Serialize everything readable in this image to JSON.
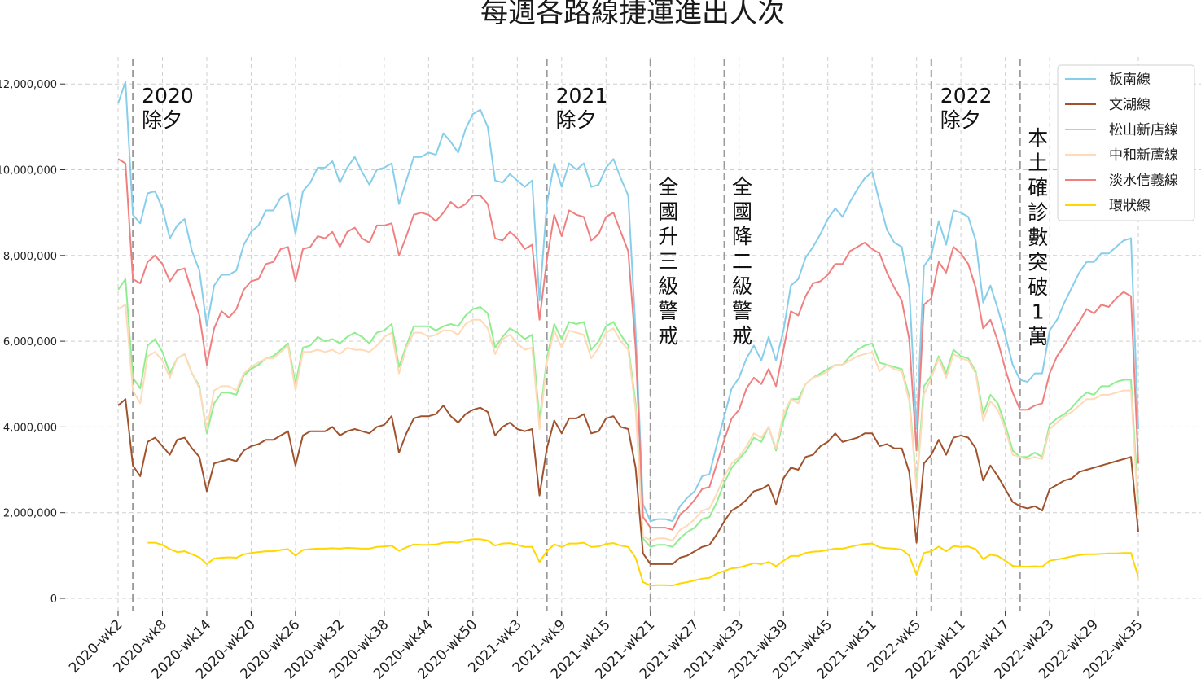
{
  "chart_data": {
    "type": "line",
    "title": "每週各路線捷運進出人次",
    "xlabel": "",
    "ylabel": "",
    "ylim": [
      0,
      12500000
    ],
    "yticks": [
      0,
      2000000,
      4000000,
      6000000,
      8000000,
      10000000,
      12000000
    ],
    "ytick_labels": [
      "0",
      "2,000,000",
      "4,000,000",
      "6,000,000",
      "8,000,000",
      "10,000,000",
      "12,000,000"
    ],
    "xtick_labels": [
      "2020-wk2",
      "2020-wk8",
      "2020-wk14",
      "2020-wk20",
      "2020-wk26",
      "2020-wk32",
      "2020-wk38",
      "2020-wk44",
      "2020-wk50",
      "2021-wk3",
      "2021-wk9",
      "2021-wk15",
      "2021-wk21",
      "2021-wk27",
      "2021-wk33",
      "2021-wk39",
      "2021-wk45",
      "2021-wk51",
      "2022-wk5",
      "2022-wk11",
      "2022-wk17",
      "2022-wk23",
      "2022-wk29",
      "2022-wk35"
    ],
    "grid": true,
    "legend_position": "top-right",
    "series": [
      {
        "name": "板南線",
        "color": "#87ceeb",
        "values": [
          11550000,
          12050000,
          8950000,
          8750000,
          9450000,
          9500000,
          9100000,
          8400000,
          8700000,
          8850000,
          8100000,
          7650000,
          6350000,
          7300000,
          7550000,
          7550000,
          7650000,
          8250000,
          8550000,
          8700000,
          9050000,
          9050000,
          9350000,
          9450000,
          8500000,
          9500000,
          9700000,
          10050000,
          10050000,
          10200000,
          9700000,
          10050000,
          10300000,
          9950000,
          9650000,
          10000000,
          10050000,
          10150000,
          9200000,
          9750000,
          10300000,
          10300000,
          10400000,
          10350000,
          10850000,
          10650000,
          10400000,
          10950000,
          11300000,
          11400000,
          11000000,
          9750000,
          9700000,
          9900000,
          9750000,
          9600000,
          9750000,
          6950000,
          9200000,
          10150000,
          9600000,
          10150000,
          10000000,
          10150000,
          9600000,
          9650000,
          10050000,
          10250000,
          9800000,
          9400000,
          6250000,
          2200000,
          1800000,
          1850000,
          1850000,
          1800000,
          2150000,
          2350000,
          2500000,
          2850000,
          2900000,
          3600000,
          4250000,
          4900000,
          5150000,
          5600000,
          5900000,
          5550000,
          6100000,
          5550000,
          6250000,
          7300000,
          7450000,
          7950000,
          8200000,
          8500000,
          8850000,
          9100000,
          8900000,
          9250000,
          9550000,
          9800000,
          9950000,
          9250000,
          8600000,
          8300000,
          8200000,
          7250000,
          3950000,
          7750000,
          8000000,
          8800000,
          8250000,
          9050000,
          9000000,
          8900000,
          8350000,
          6900000,
          7300000,
          6750000,
          6150000,
          5450000,
          5100000,
          5050000,
          5250000,
          5250000,
          6250000,
          6500000,
          6900000,
          7250000,
          7600000,
          7850000,
          7850000,
          8050000,
          8050000,
          8200000,
          8350000,
          8400000,
          3950000
        ]
      },
      {
        "name": "文湖線",
        "color": "#a0522d",
        "values": [
          4500000,
          4650000,
          3100000,
          2850000,
          3650000,
          3750000,
          3550000,
          3350000,
          3700000,
          3750000,
          3500000,
          3300000,
          2500000,
          3150000,
          3200000,
          3250000,
          3200000,
          3450000,
          3550000,
          3600000,
          3700000,
          3700000,
          3800000,
          3900000,
          3100000,
          3800000,
          3900000,
          3900000,
          3900000,
          4000000,
          3800000,
          3900000,
          3950000,
          3900000,
          3850000,
          4000000,
          4050000,
          4250000,
          3400000,
          3850000,
          4200000,
          4250000,
          4250000,
          4300000,
          4500000,
          4250000,
          4100000,
          4300000,
          4400000,
          4450000,
          4350000,
          3800000,
          4000000,
          4100000,
          3950000,
          3900000,
          3950000,
          2400000,
          3500000,
          4150000,
          3850000,
          4200000,
          4200000,
          4300000,
          3850000,
          3900000,
          4200000,
          4250000,
          4000000,
          3950000,
          3050000,
          1050000,
          800000,
          800000,
          800000,
          800000,
          950000,
          1000000,
          1100000,
          1200000,
          1250000,
          1500000,
          1800000,
          2050000,
          2150000,
          2300000,
          2500000,
          2550000,
          2650000,
          2200000,
          2800000,
          3050000,
          3000000,
          3300000,
          3350000,
          3550000,
          3650000,
          3850000,
          3650000,
          3700000,
          3750000,
          3850000,
          3850000,
          3550000,
          3600000,
          3500000,
          3500000,
          2950000,
          1300000,
          3150000,
          3350000,
          3700000,
          3350000,
          3750000,
          3800000,
          3750000,
          3500000,
          2750000,
          3100000,
          2850000,
          2550000,
          2250000,
          2150000,
          2100000,
          2150000,
          2050000,
          2550000,
          2650000,
          2750000,
          2800000,
          2950000,
          3000000,
          3050000,
          3100000,
          3150000,
          3200000,
          3250000,
          3300000,
          1550000
        ]
      },
      {
        "name": "松山新店線",
        "color": "#90ee90",
        "values": [
          7200000,
          7450000,
          5150000,
          4900000,
          5900000,
          6050000,
          5750000,
          5250000,
          5600000,
          5700000,
          5250000,
          4950000,
          3850000,
          4550000,
          4800000,
          4800000,
          4750000,
          5200000,
          5350000,
          5450000,
          5600000,
          5650000,
          5800000,
          5950000,
          5000000,
          5850000,
          5900000,
          6100000,
          6000000,
          6050000,
          5950000,
          6100000,
          6200000,
          6100000,
          5950000,
          6200000,
          6250000,
          6400000,
          5400000,
          5900000,
          6350000,
          6350000,
          6350000,
          6250000,
          6350000,
          6400000,
          6350000,
          6600000,
          6750000,
          6800000,
          6650000,
          5850000,
          6100000,
          6300000,
          6200000,
          6050000,
          6150000,
          4150000,
          5600000,
          6400000,
          6050000,
          6450000,
          6400000,
          6450000,
          5800000,
          6000000,
          6350000,
          6450000,
          6150000,
          5900000,
          4550000,
          1400000,
          1200000,
          1250000,
          1250000,
          1200000,
          1400000,
          1550000,
          1650000,
          1850000,
          1900000,
          2250000,
          2700000,
          3050000,
          3250000,
          3450000,
          3750000,
          3650000,
          4000000,
          3450000,
          4150000,
          4650000,
          4650000,
          5000000,
          5150000,
          5250000,
          5350000,
          5450000,
          5450000,
          5650000,
          5800000,
          5900000,
          5950000,
          5500000,
          5450000,
          5400000,
          5350000,
          4700000,
          2650000,
          4950000,
          5200000,
          5650000,
          5250000,
          5800000,
          5650000,
          5600000,
          5300000,
          4300000,
          4750000,
          4550000,
          4050000,
          3450000,
          3300000,
          3300000,
          3400000,
          3300000,
          4050000,
          4200000,
          4300000,
          4450000,
          4650000,
          4800000,
          4750000,
          4950000,
          4950000,
          5050000,
          5100000,
          5100000,
          2200000
        ]
      },
      {
        "name": "中和新蘆線",
        "color": "#ffdab9",
        "values": [
          6750000,
          6850000,
          4850000,
          4550000,
          5650000,
          5750000,
          5550000,
          5150000,
          5600000,
          5700000,
          5250000,
          4900000,
          3950000,
          4850000,
          4950000,
          4950000,
          4850000,
          5250000,
          5400000,
          5500000,
          5600000,
          5600000,
          5750000,
          5900000,
          4850000,
          5750000,
          5750000,
          5800000,
          5750000,
          5800000,
          5700000,
          5850000,
          5800000,
          5800000,
          5750000,
          5900000,
          6100000,
          6200000,
          5250000,
          5850000,
          6200000,
          6200000,
          6100000,
          6150000,
          6250000,
          6250000,
          6150000,
          6400000,
          6500000,
          6500000,
          6300000,
          5700000,
          6050000,
          6150000,
          5950000,
          5800000,
          5850000,
          3950000,
          5500000,
          6250000,
          5850000,
          6250000,
          6200000,
          6150000,
          5600000,
          5850000,
          6200000,
          6300000,
          6000000,
          5800000,
          4400000,
          1450000,
          1350000,
          1400000,
          1400000,
          1350000,
          1600000,
          1700000,
          1850000,
          2050000,
          2100000,
          2450000,
          2850000,
          3150000,
          3300000,
          3550000,
          3850000,
          3750000,
          4000000,
          3500000,
          4300000,
          4650000,
          4550000,
          5000000,
          5150000,
          5200000,
          5300000,
          5450000,
          5450000,
          5550000,
          5650000,
          5700000,
          5750000,
          5300000,
          5450000,
          5350000,
          5300000,
          4600000,
          2550000,
          4750000,
          5150000,
          5600000,
          5150000,
          5700000,
          5600000,
          5550000,
          5250000,
          4150000,
          4600000,
          4400000,
          3950000,
          3350000,
          3300000,
          3250000,
          3300000,
          3250000,
          3950000,
          4100000,
          4250000,
          4350000,
          4500000,
          4650000,
          4650000,
          4750000,
          4750000,
          4800000,
          4850000,
          4850000,
          1950000
        ]
      },
      {
        "name": "淡水信義線",
        "color": "#f08080",
        "values": [
          10250000,
          10150000,
          7450000,
          7350000,
          7850000,
          8000000,
          7800000,
          7400000,
          7650000,
          7700000,
          7150000,
          6600000,
          5450000,
          6300000,
          6700000,
          6550000,
          6750000,
          7200000,
          7400000,
          7450000,
          7800000,
          7850000,
          8150000,
          8200000,
          7400000,
          8150000,
          8200000,
          8450000,
          8400000,
          8550000,
          8200000,
          8550000,
          8650000,
          8400000,
          8300000,
          8700000,
          8700000,
          8750000,
          8000000,
          8450000,
          8950000,
          9000000,
          8950000,
          8800000,
          9000000,
          9250000,
          9100000,
          9200000,
          9400000,
          9400000,
          9200000,
          8400000,
          8350000,
          8550000,
          8400000,
          8150000,
          8250000,
          6500000,
          7900000,
          8950000,
          8450000,
          9050000,
          8950000,
          8900000,
          8350000,
          8500000,
          8900000,
          9000000,
          8550000,
          8100000,
          5850000,
          1900000,
          1650000,
          1650000,
          1650000,
          1600000,
          1950000,
          2100000,
          2300000,
          2550000,
          2600000,
          3150000,
          3700000,
          4200000,
          4400000,
          4900000,
          5150000,
          5000000,
          5350000,
          4950000,
          5800000,
          6700000,
          6600000,
          7050000,
          7350000,
          7400000,
          7550000,
          7800000,
          7800000,
          8100000,
          8200000,
          8300000,
          8150000,
          8050000,
          7600000,
          7250000,
          6950000,
          6050000,
          3450000,
          6850000,
          7000000,
          7850000,
          7600000,
          8200000,
          8050000,
          7800000,
          7250000,
          6300000,
          6500000,
          6000000,
          5350000,
          4800000,
          4400000,
          4400000,
          4500000,
          4550000,
          5250000,
          5650000,
          5900000,
          6200000,
          6450000,
          6750000,
          6650000,
          6850000,
          6800000,
          7000000,
          7150000,
          7050000,
          3150000
        ]
      },
      {
        "name": "環狀線",
        "color": "#ffd700",
        "values": [
          null,
          null,
          null,
          null,
          1300000,
          1300000,
          1250000,
          1150000,
          1080000,
          1100000,
          1030000,
          960000,
          800000,
          930000,
          950000,
          960000,
          950000,
          1030000,
          1060000,
          1080000,
          1100000,
          1100000,
          1130000,
          1150000,
          1000000,
          1130000,
          1150000,
          1160000,
          1160000,
          1170000,
          1160000,
          1180000,
          1170000,
          1160000,
          1160000,
          1200000,
          1210000,
          1230000,
          1110000,
          1190000,
          1260000,
          1250000,
          1250000,
          1260000,
          1300000,
          1310000,
          1300000,
          1350000,
          1380000,
          1380000,
          1350000,
          1230000,
          1280000,
          1290000,
          1250000,
          1200000,
          1200000,
          850000,
          1100000,
          1260000,
          1200000,
          1280000,
          1280000,
          1300000,
          1200000,
          1210000,
          1270000,
          1290000,
          1230000,
          1200000,
          950000,
          380000,
          300000,
          310000,
          310000,
          300000,
          350000,
          380000,
          420000,
          460000,
          480000,
          580000,
          640000,
          700000,
          720000,
          770000,
          820000,
          800000,
          850000,
          750000,
          880000,
          990000,
          990000,
          1060000,
          1090000,
          1100000,
          1130000,
          1160000,
          1160000,
          1200000,
          1240000,
          1270000,
          1280000,
          1190000,
          1170000,
          1160000,
          1140000,
          1000000,
          550000,
          1060000,
          1100000,
          1210000,
          1100000,
          1220000,
          1200000,
          1210000,
          1150000,
          920000,
          1020000,
          990000,
          880000,
          760000,
          740000,
          740000,
          750000,
          740000,
          880000,
          910000,
          940000,
          980000,
          1010000,
          1030000,
          1030000,
          1040000,
          1050000,
          1050000,
          1060000,
          1060000,
          500000
        ]
      }
    ],
    "annotations": [
      {
        "lines": [
          "2020",
          "除夕"
        ],
        "orientation": "horizontal",
        "week_index": 2
      },
      {
        "lines": [
          "2021",
          "除夕"
        ],
        "orientation": "horizontal",
        "week_index": 58
      },
      {
        "lines": [
          "全",
          "國",
          "升",
          "三",
          "級",
          "警",
          "戒"
        ],
        "orientation": "vertical",
        "week_index": 72
      },
      {
        "lines": [
          "全",
          "國",
          "降",
          "二",
          "級",
          "警",
          "戒"
        ],
        "orientation": "vertical",
        "week_index": 82
      },
      {
        "lines": [
          "2022",
          "除夕"
        ],
        "orientation": "horizontal",
        "week_index": 110
      },
      {
        "lines": [
          "本",
          "土",
          "確",
          "診",
          "數",
          "突",
          "破",
          "1",
          "萬"
        ],
        "orientation": "vertical",
        "week_index": 122
      }
    ]
  }
}
